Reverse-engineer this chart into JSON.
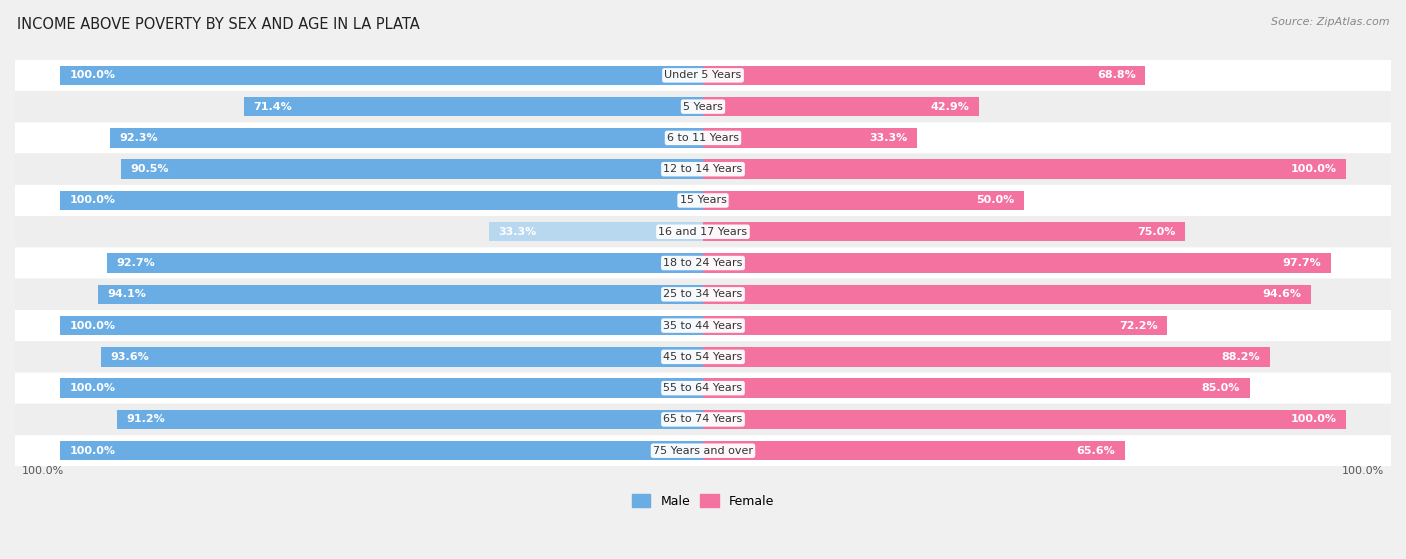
{
  "title": "INCOME ABOVE POVERTY BY SEX AND AGE IN LA PLATA",
  "source": "Source: ZipAtlas.com",
  "categories": [
    "Under 5 Years",
    "5 Years",
    "6 to 11 Years",
    "12 to 14 Years",
    "15 Years",
    "16 and 17 Years",
    "18 to 24 Years",
    "25 to 34 Years",
    "35 to 44 Years",
    "45 to 54 Years",
    "55 to 64 Years",
    "65 to 74 Years",
    "75 Years and over"
  ],
  "male": [
    100.0,
    71.4,
    92.3,
    90.5,
    100.0,
    33.3,
    92.7,
    94.1,
    100.0,
    93.6,
    100.0,
    91.2,
    100.0
  ],
  "female": [
    68.8,
    42.9,
    33.3,
    100.0,
    50.0,
    75.0,
    97.7,
    94.6,
    72.2,
    88.2,
    85.0,
    100.0,
    65.6
  ],
  "male_color": "#6aade4",
  "female_color": "#f472a0",
  "male_color_light": "#b8d8f0",
  "female_color_light": "#f9b8cf",
  "row_colors": [
    "#ffffff",
    "#eeeeee"
  ],
  "bg_color": "#f0f0f0",
  "title_fontsize": 10.5,
  "label_fontsize": 8.0,
  "value_fontsize": 8.0,
  "legend_fontsize": 9,
  "source_fontsize": 8,
  "bottom_left_label": "100.0%",
  "bottom_right_label": "100.0%"
}
